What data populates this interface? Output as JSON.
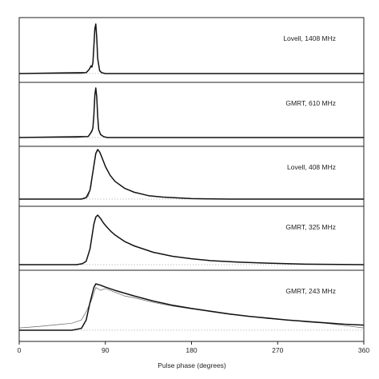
{
  "chart_data": {
    "type": "line",
    "xlabel": "Pulse phase (degrees)",
    "xlim": [
      0,
      360
    ],
    "xticks": [
      "0",
      "90",
      "180",
      "270",
      "360"
    ],
    "panels": [
      {
        "label": "Lovell, 1408 MHz",
        "series": [
          {
            "role": "observed profile",
            "x": [
              0,
              40,
              65,
              70,
              73,
              75,
              76,
              77,
              78,
              79,
              80,
              81,
              82,
              84,
              86,
              90,
              120,
              200,
              300,
              360
            ],
            "y": [
              0.0,
              0.0,
              0.0,
              0.02,
              0.08,
              0.17,
              0.14,
              0.22,
              0.55,
              0.9,
              1.0,
              0.7,
              0.3,
              0.06,
              0.02,
              0.0,
              0.0,
              0.0,
              0.0,
              0.0
            ]
          },
          {
            "role": "model fit",
            "x": [
              0,
              70,
              73,
              75,
              76,
              77,
              78,
              79,
              80,
              81,
              82,
              84,
              86,
              90,
              360
            ],
            "y": [
              0.0,
              0.02,
              0.08,
              0.15,
              0.13,
              0.22,
              0.55,
              0.9,
              1.0,
              0.72,
              0.3,
              0.06,
              0.02,
              0.0,
              0.0
            ]
          }
        ]
      },
      {
        "label": "GMRT, 610 MHz",
        "series": [
          {
            "role": "observed profile",
            "x": [
              0,
              60,
              72,
              74,
              76,
              77,
              78,
              79,
              80,
              81,
              82,
              83,
              85,
              88,
              92,
              120,
              200,
              300,
              360
            ],
            "y": [
              0.0,
              0.0,
              0.02,
              0.08,
              0.15,
              0.2,
              0.45,
              0.85,
              1.0,
              0.8,
              0.4,
              0.15,
              0.06,
              0.02,
              0.0,
              0.0,
              0.0,
              0.0,
              0.0
            ]
          },
          {
            "role": "model fit",
            "x": [
              0,
              72,
              74,
              76,
              77,
              78,
              79,
              80,
              81,
              82,
              83,
              85,
              88,
              92,
              360
            ],
            "y": [
              0.0,
              0.02,
              0.07,
              0.13,
              0.2,
              0.45,
              0.85,
              1.0,
              0.82,
              0.42,
              0.16,
              0.06,
              0.02,
              0.0,
              0.0
            ]
          }
        ]
      },
      {
        "label": "Lovell, 408 MHz",
        "series": [
          {
            "role": "observed profile",
            "x": [
              0,
              60,
              68,
              72,
              75,
              78,
              80,
              82,
              84,
              86,
              88,
              90,
              95,
              100,
              110,
              120,
              135,
              150,
              180,
              220,
              360
            ],
            "y": [
              0.0,
              0.0,
              0.01,
              0.05,
              0.25,
              0.7,
              0.93,
              1.0,
              0.95,
              0.86,
              0.76,
              0.66,
              0.48,
              0.36,
              0.22,
              0.13,
              0.07,
              0.04,
              0.01,
              0.0,
              0.0
            ]
          },
          {
            "role": "model fit",
            "x": [
              0,
              65,
              70,
              74,
              77,
              80,
              82,
              84,
              86,
              88,
              90,
              95,
              100,
              110,
              120,
              135,
              150,
              180,
              220,
              360
            ],
            "y": [
              0.0,
              0.0,
              0.03,
              0.18,
              0.55,
              0.92,
              1.0,
              0.95,
              0.86,
              0.76,
              0.66,
              0.48,
              0.36,
              0.22,
              0.14,
              0.07,
              0.04,
              0.01,
              0.0,
              0.0
            ]
          }
        ]
      },
      {
        "label": "GMRT, 325 MHz",
        "series": [
          {
            "role": "observed profile",
            "x": [
              0,
              55,
              65,
              70,
              74,
              78,
              80,
              82,
              85,
              88,
              92,
              96,
              100,
              110,
              120,
              140,
              160,
              180,
              200,
              230,
              260,
              300,
              360
            ],
            "y": [
              0.0,
              0.0,
              0.01,
              0.06,
              0.32,
              0.8,
              0.95,
              1.0,
              0.93,
              0.84,
              0.75,
              0.66,
              0.6,
              0.47,
              0.37,
              0.25,
              0.17,
              0.12,
              0.08,
              0.05,
              0.03,
              0.01,
              0.0
            ]
          },
          {
            "role": "model fit",
            "x": [
              0,
              60,
              66,
              70,
              74,
              78,
              80,
              82,
              85,
              88,
              92,
              96,
              100,
              110,
              120,
              140,
              160,
              180,
              200,
              230,
              260,
              300,
              360
            ],
            "y": [
              0.0,
              0.0,
              0.02,
              0.07,
              0.32,
              0.82,
              0.96,
              1.0,
              0.93,
              0.84,
              0.75,
              0.67,
              0.6,
              0.47,
              0.38,
              0.25,
              0.17,
              0.12,
              0.08,
              0.05,
              0.03,
              0.01,
              0.0
            ]
          }
        ]
      },
      {
        "label": "GMRT, 243 MHz",
        "series": [
          {
            "role": "observed profile",
            "x": [
              0,
              20,
              40,
              55,
              65,
              70,
              75,
              80,
              85,
              90,
              100,
              110,
              120,
              140,
              160,
              180,
              200,
              220,
              240,
              260,
              280,
              300,
              320,
              340,
              360
            ],
            "y": [
              0.05,
              0.08,
              0.12,
              0.15,
              0.22,
              0.4,
              0.62,
              0.92,
              0.86,
              0.9,
              0.82,
              0.74,
              0.7,
              0.6,
              0.52,
              0.46,
              0.4,
              0.34,
              0.3,
              0.25,
              0.22,
              0.18,
              0.15,
              0.1,
              0.05
            ]
          },
          {
            "role": "model fit",
            "x": [
              0,
              20,
              40,
              55,
              65,
              70,
              74,
              78,
              80,
              85,
              90,
              100,
              120,
              140,
              160,
              180,
              200,
              220,
              240,
              260,
              280,
              300,
              320,
              340,
              360
            ],
            "y": [
              0.0,
              0.0,
              0.0,
              0.0,
              0.04,
              0.22,
              0.6,
              0.92,
              1.0,
              0.97,
              0.93,
              0.86,
              0.74,
              0.63,
              0.54,
              0.47,
              0.41,
              0.35,
              0.3,
              0.26,
              0.22,
              0.19,
              0.16,
              0.13,
              0.11
            ]
          }
        ]
      }
    ]
  }
}
